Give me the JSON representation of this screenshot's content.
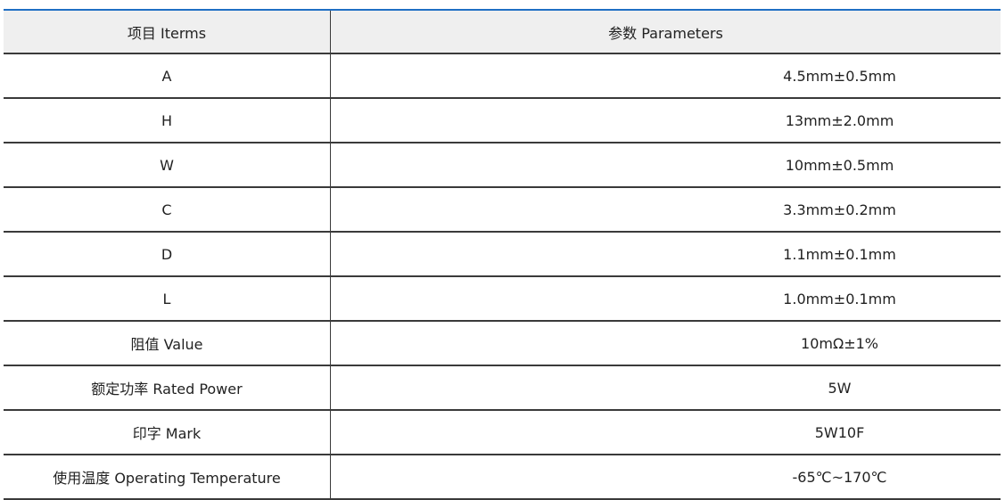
{
  "header": {
    "items": "项目 Iterms",
    "parameters": "参数 Parameters"
  },
  "rows": [
    {
      "item": "A",
      "value": "4.5mm±0.5mm"
    },
    {
      "item": "H",
      "value": "13mm±2.0mm"
    },
    {
      "item": "W",
      "value": "10mm±0.5mm"
    },
    {
      "item": "C",
      "value": "3.3mm±0.2mm"
    },
    {
      "item": "D",
      "value": "1.1mm±0.1mm"
    },
    {
      "item": "L",
      "value": "1.0mm±0.1mm"
    },
    {
      "item": "阻值 Value",
      "value": "10mΩ±1%"
    },
    {
      "item": "额定功率 Rated Power",
      "value": "5W"
    },
    {
      "item": "印字 Mark",
      "value": "5W10F"
    },
    {
      "item": "使用温度 Operating Temperature",
      "value": "-65℃~170℃"
    }
  ],
  "colors": {
    "header_bg": "#efefef",
    "top_border": "#1f6fc4"
  }
}
